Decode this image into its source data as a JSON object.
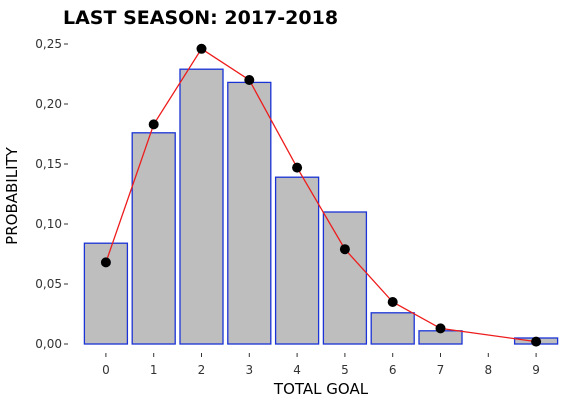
{
  "chart_data": {
    "type": "bar",
    "title": "LAST SEASON: 2017-2018",
    "xlabel": "TOTAL GOAL",
    "ylabel": "PROBABILITY",
    "categories": [
      "0",
      "1",
      "2",
      "3",
      "4",
      "5",
      "6",
      "7",
      "8",
      "9"
    ],
    "ylim": [
      0,
      0.25
    ],
    "yticks": [
      0,
      0.05,
      0.1,
      0.15,
      0.2,
      0.25
    ],
    "ytick_labels": [
      "0,00",
      "0,05",
      "0,10",
      "0,15",
      "0,20",
      "0,25"
    ],
    "grid": false,
    "series": [
      {
        "type": "bar",
        "values": [
          0.084,
          0.176,
          0.229,
          0.218,
          0.139,
          0.11,
          0.026,
          0.011,
          0.0,
          0.005
        ],
        "fill": "#bebebe",
        "stroke": "#1a33d6"
      },
      {
        "type": "line",
        "markers": true,
        "values": [
          0.068,
          0.183,
          0.246,
          0.22,
          0.147,
          0.079,
          0.035,
          0.013,
          null,
          0.002
        ],
        "color": "#ee1c1c",
        "marker_color": "#000000"
      }
    ]
  }
}
